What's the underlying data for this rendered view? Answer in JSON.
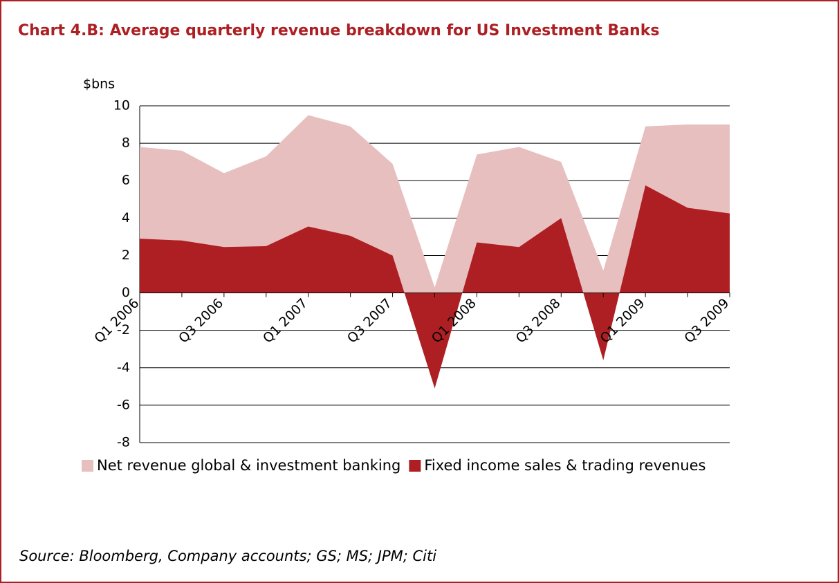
{
  "chart_data": {
    "type": "area",
    "title": "Chart 4.B: Average quarterly revenue breakdown for US Investment Banks",
    "y_label": "$bns",
    "categories": [
      "Q1 2006",
      null,
      "Q3 2006",
      null,
      "Q1 2007",
      null,
      "Q3 2007",
      null,
      "Q1 2008",
      null,
      "Q3 2008",
      null,
      "Q1 2009",
      null,
      "Q3 2009"
    ],
    "series": [
      {
        "name": "Net revenue global & investment banking",
        "color": "#e8bfbf",
        "values": [
          7.8,
          7.6,
          6.4,
          7.3,
          9.5,
          8.9,
          6.9,
          0.3,
          7.4,
          7.8,
          7.0,
          1.2,
          8.9,
          9.0,
          9.0
        ]
      },
      {
        "name": "Fixed income sales & trading revenues",
        "color": "#ad1f23",
        "values": [
          2.9,
          2.8,
          2.45,
          2.5,
          3.55,
          3.05,
          2.0,
          -5.1,
          2.7,
          2.45,
          4.0,
          -3.6,
          5.75,
          4.55,
          4.25
        ]
      }
    ],
    "ylim": [
      -8,
      10
    ],
    "yticks": [
      -8,
      -6,
      -4,
      -2,
      0,
      2,
      4,
      6,
      8,
      10
    ],
    "grid": true,
    "source": "Source: Bloomberg, Company accounts; GS; MS; JPM; Citi"
  }
}
